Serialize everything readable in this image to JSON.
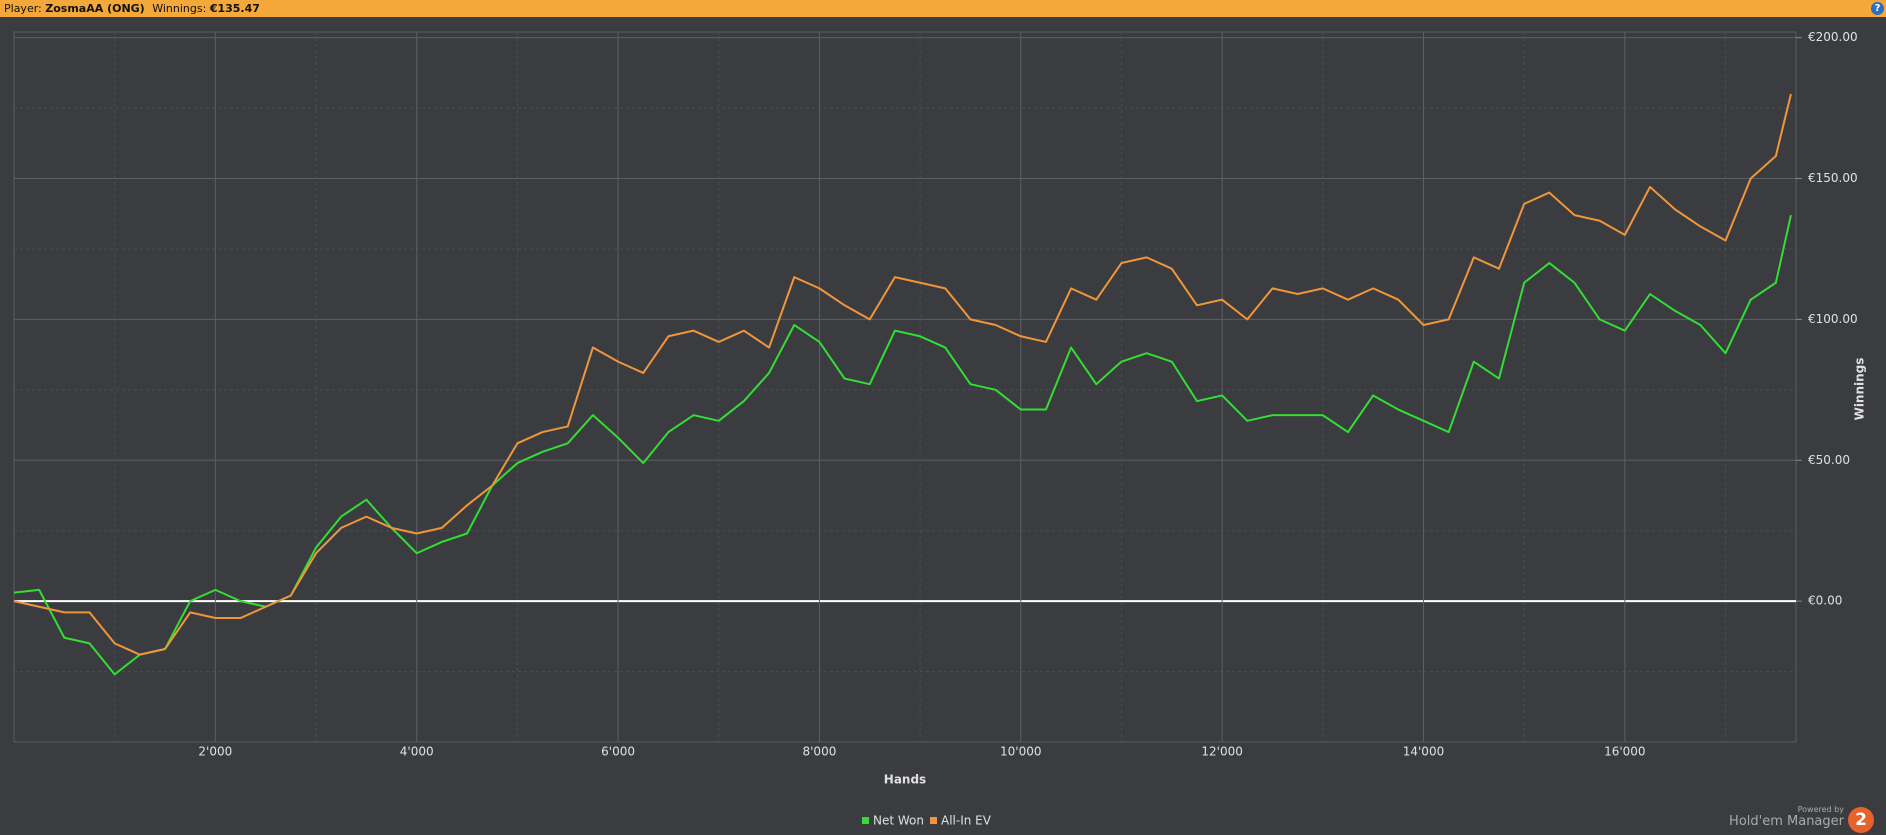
{
  "header": {
    "player_label": "Player:",
    "player": "ZosmaAA (ONG)",
    "winnings_label": "Winnings:",
    "winnings": "€135.47",
    "help": "?"
  },
  "branding": {
    "powered_by": "Powered by",
    "product": "Hold'em Manager",
    "version": "2"
  },
  "chart_data": {
    "type": "line",
    "x_label": "Hands",
    "y_label": "Winnings",
    "x": [
      0,
      250,
      500,
      750,
      1000,
      1250,
      1500,
      1750,
      2000,
      2250,
      2500,
      2750,
      3000,
      3250,
      3500,
      3750,
      4000,
      4250,
      4500,
      4750,
      5000,
      5250,
      5500,
      5750,
      6000,
      6250,
      6500,
      6750,
      7000,
      7250,
      7500,
      7750,
      8000,
      8250,
      8500,
      8750,
      9000,
      9250,
      9500,
      9750,
      10000,
      10250,
      10500,
      10750,
      11000,
      11250,
      11500,
      11750,
      12000,
      12250,
      12500,
      12750,
      13000,
      13250,
      13500,
      13750,
      14000,
      14250,
      14500,
      14750,
      15000,
      15250,
      15500,
      15750,
      16000,
      16250,
      16500,
      16750,
      17000,
      17250,
      17500,
      17650
    ],
    "series": [
      {
        "name": "Net Won",
        "color": "#33dd33",
        "values": [
          3,
          4,
          -13,
          -15,
          -26,
          -19,
          -17,
          0,
          4,
          0,
          -2,
          2,
          19,
          30,
          36,
          26,
          17,
          21,
          24,
          41,
          49,
          53,
          56,
          66,
          58,
          49,
          60,
          66,
          64,
          71,
          81,
          98,
          92,
          79,
          77,
          96,
          94,
          90,
          77,
          75,
          68,
          68,
          90,
          77,
          85,
          88,
          85,
          71,
          73,
          64,
          66,
          66,
          66,
          60,
          73,
          68,
          64,
          60,
          85,
          79,
          113,
          120,
          113,
          100,
          96,
          109,
          103,
          98,
          88,
          107,
          113,
          137
        ]
      },
      {
        "name": "All-In EV",
        "color": "#f0963a",
        "values": [
          0,
          -2,
          -4,
          -4,
          -15,
          -19,
          -17,
          -4,
          -6,
          -6,
          -2,
          2,
          17,
          26,
          30,
          26,
          24,
          26,
          34,
          41,
          56,
          60,
          62,
          90,
          85,
          81,
          94,
          96,
          92,
          96,
          90,
          115,
          111,
          105,
          100,
          115,
          113,
          111,
          100,
          98,
          94,
          92,
          111,
          107,
          120,
          122,
          118,
          105,
          107,
          100,
          111,
          109,
          111,
          107,
          111,
          107,
          98,
          100,
          122,
          118,
          141,
          145,
          137,
          135,
          130,
          147,
          139,
          133,
          128,
          150,
          158,
          180
        ]
      }
    ],
    "xlim": [
      0,
      17700
    ],
    "ylim": [
      -50,
      202
    ],
    "xticks": [
      {
        "value": 2000,
        "label": "2'000"
      },
      {
        "value": 4000,
        "label": "4'000"
      },
      {
        "value": 6000,
        "label": "6'000"
      },
      {
        "value": 8000,
        "label": "8'000"
      },
      {
        "value": 10000,
        "label": "10'000"
      },
      {
        "value": 12000,
        "label": "12'000"
      },
      {
        "value": 14000,
        "label": "14'000"
      },
      {
        "value": 16000,
        "label": "16'000"
      }
    ],
    "yticks": [
      {
        "value": 0,
        "label": "€0.00"
      },
      {
        "value": 50,
        "label": "€50.00"
      },
      {
        "value": 100,
        "label": "€100.00"
      },
      {
        "value": 150,
        "label": "€150.00"
      },
      {
        "value": 200,
        "label": "€200.00"
      }
    ],
    "xminor": [
      1000,
      3000,
      5000,
      7000,
      9000,
      11000,
      13000,
      15000,
      17000
    ],
    "yminor": [
      -25,
      25,
      75,
      125,
      175
    ],
    "grid": true,
    "legend": "bottom"
  }
}
